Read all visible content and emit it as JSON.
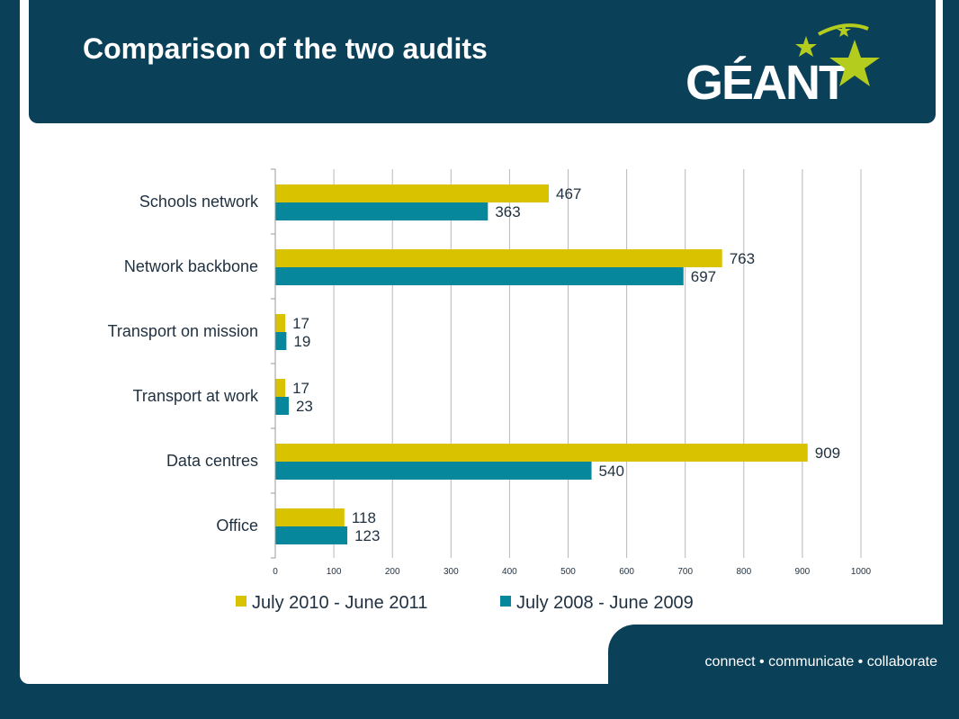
{
  "slide": {
    "title": "Comparison of the two audits",
    "logo_text": "GÉANT",
    "tagline": "connect • communicate • collaborate"
  },
  "colors": {
    "navy": "#0b4059",
    "series_2010_2011": "#d9c300",
    "series_2008_2009": "#06879c",
    "logo_star": "#b4cc1e"
  },
  "chart_data": {
    "type": "bar",
    "orientation": "horizontal",
    "title": "",
    "xlabel": "",
    "ylabel": "",
    "categories": [
      "Schools network",
      "Network backbone",
      "Transport on mission",
      "Transport at work",
      "Data centres",
      "Office"
    ],
    "series": [
      {
        "name": "July 2010 - June 2011",
        "values": [
          467,
          763,
          17,
          17,
          909,
          118
        ]
      },
      {
        "name": "July 2008 - June 2009",
        "values": [
          363,
          697,
          19,
          23,
          540,
          123
        ]
      }
    ],
    "xlim": [
      0,
      1000
    ],
    "xticks": [
      0,
      100,
      200,
      300,
      400,
      500,
      600,
      700,
      800,
      900,
      1000
    ],
    "grid": "vertical",
    "legend": "bottom"
  }
}
